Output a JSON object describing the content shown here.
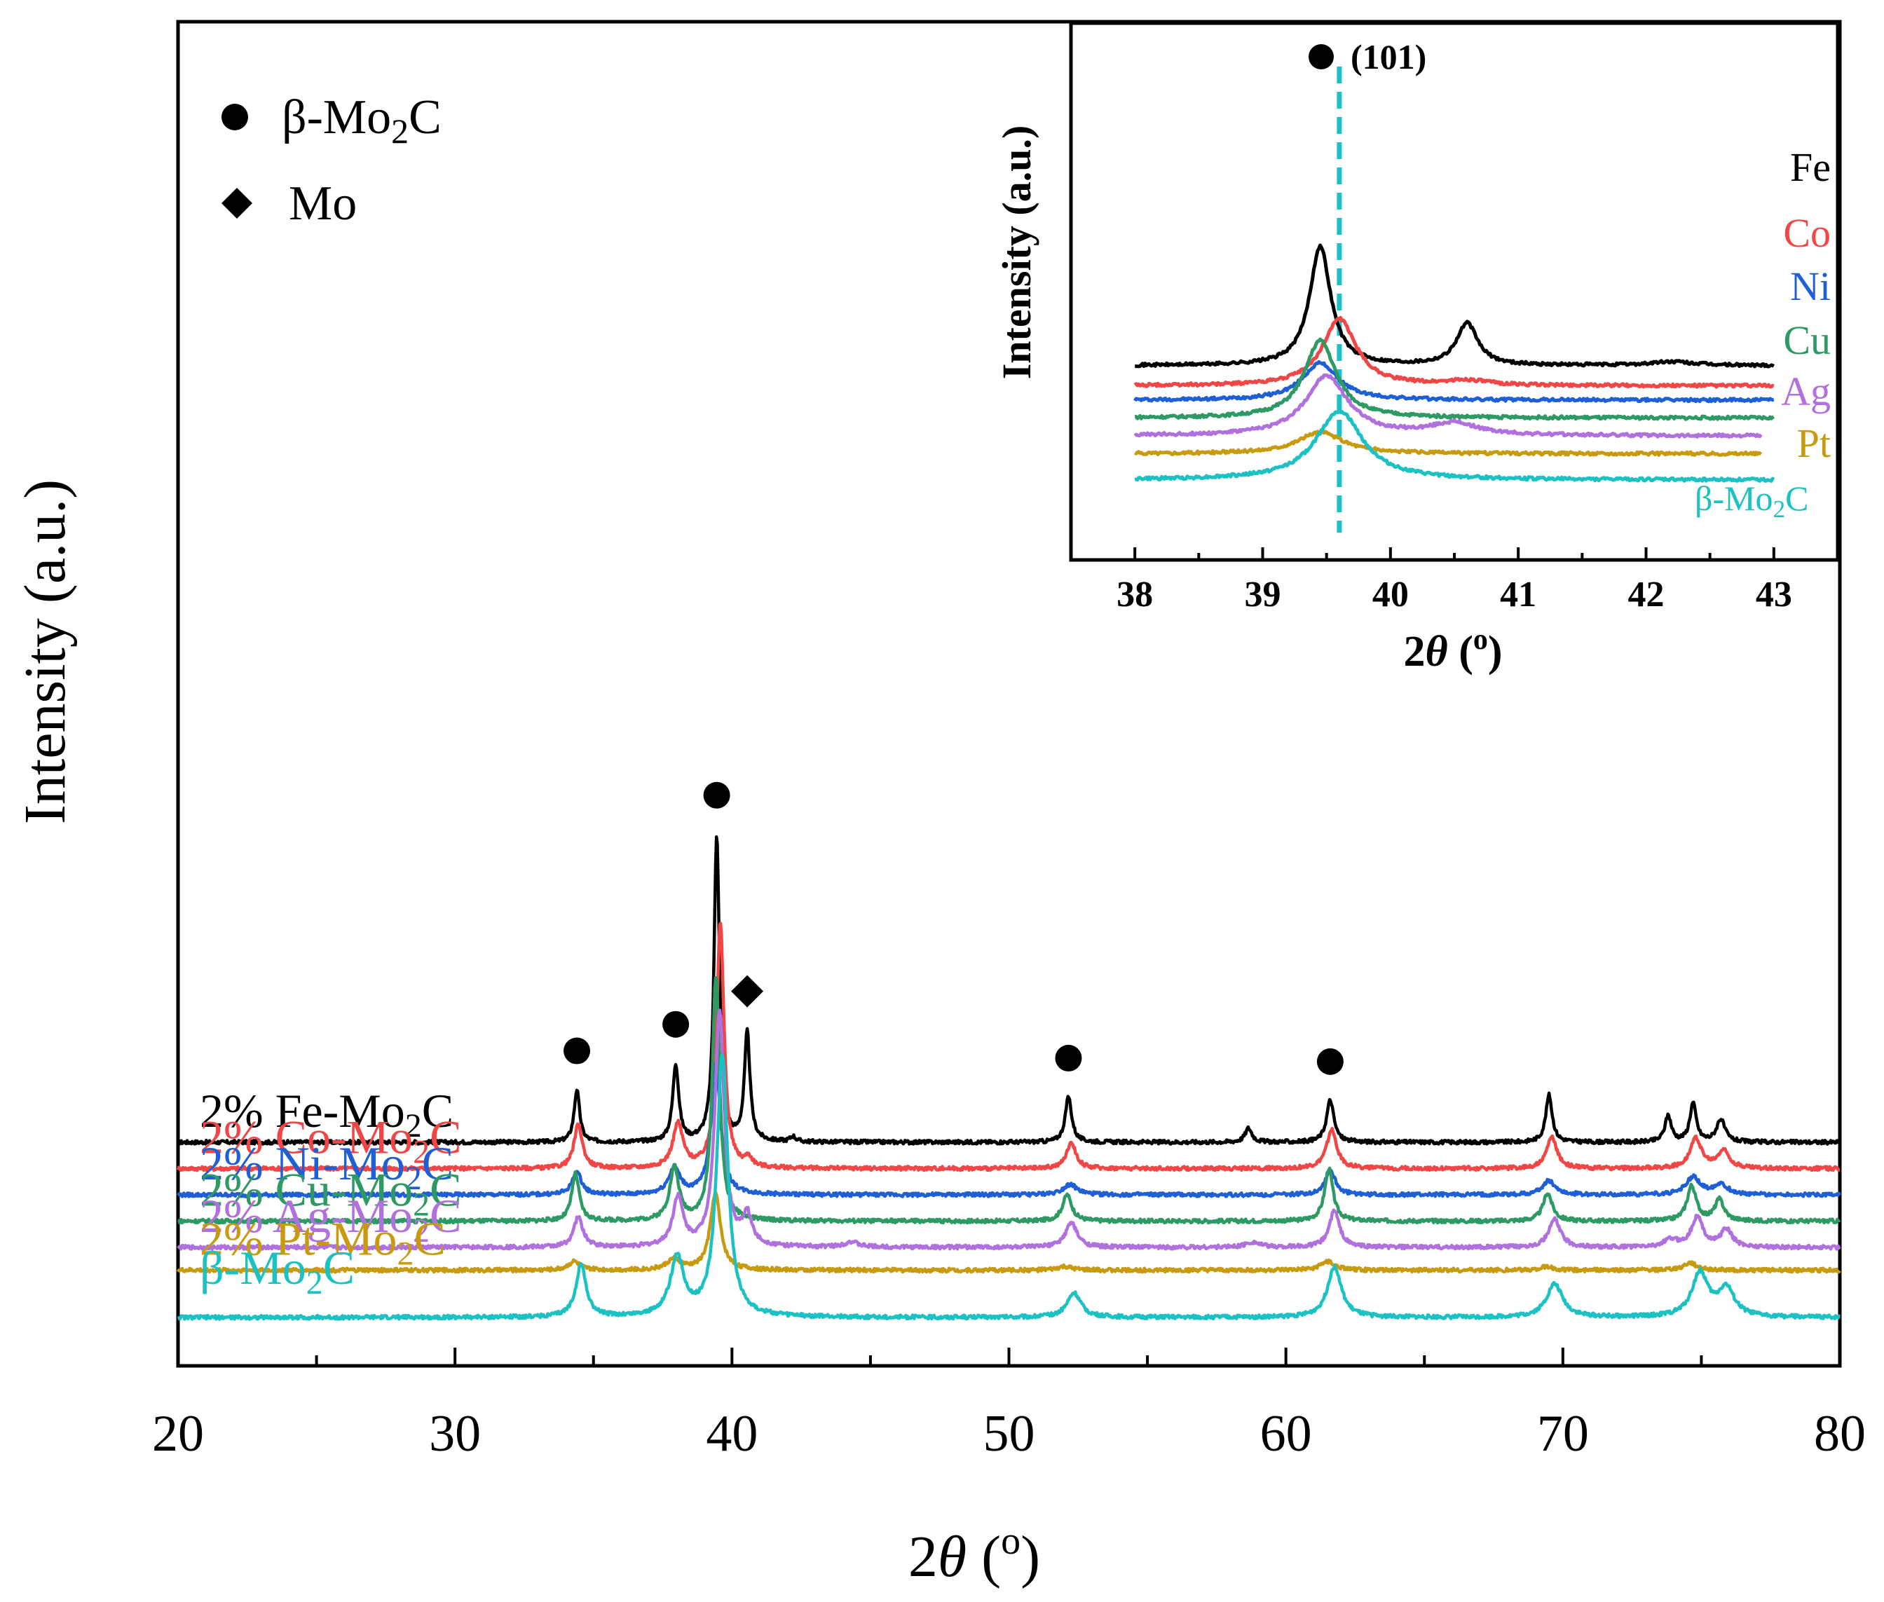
{
  "colors": {
    "Fe": "#000000",
    "Co": "#f04646",
    "Ni": "#1f5fd6",
    "Cu": "#2e9a63",
    "Ag": "#b070dd",
    "Pt": "#c89a10",
    "Mo2C": "#1cc1c4"
  },
  "legend": {
    "beta_prefix": "β-Mo",
    "beta_sub": "2",
    "beta_suffix": "C",
    "mo_label": "Mo"
  },
  "chart_data": [
    {
      "type": "line",
      "title": "",
      "xlabel_prefix": "2",
      "xlabel_theta": "θ",
      "xlabel_suffix": " (",
      "xlabel_unit": "o",
      "xlabel_close": ")",
      "ylabel": "Intensity (a.u.)",
      "xlim": [
        20,
        80
      ],
      "xticks": [
        20,
        30,
        40,
        50,
        60,
        70,
        80
      ],
      "grid": false,
      "legend_position": "top-left",
      "series": [
        {
          "key": "Fe",
          "label_prefix": "2% Fe-Mo",
          "label_sub": "2",
          "label_suffix": "C",
          "baseline": 1.0,
          "peaks": [
            [
              34.4,
              0.3,
              0.12
            ],
            [
              37.97,
              0.44,
              0.13
            ],
            [
              39.45,
              1.75,
              0.12
            ],
            [
              40.55,
              0.62,
              0.12
            ],
            [
              42.2,
              0.03,
              0.12
            ],
            [
              52.15,
              0.26,
              0.14
            ],
            [
              58.65,
              0.08,
              0.15
            ],
            [
              61.6,
              0.24,
              0.16
            ],
            [
              69.5,
              0.27,
              0.14
            ],
            [
              73.8,
              0.15,
              0.14
            ],
            [
              74.7,
              0.22,
              0.14
            ],
            [
              75.7,
              0.13,
              0.18
            ]
          ]
        },
        {
          "key": "Co",
          "label_prefix": "2% Co-Mo",
          "label_sub": "2",
          "label_suffix": "C",
          "baseline": 0.85,
          "peaks": [
            [
              34.45,
              0.25,
              0.18
            ],
            [
              38.05,
              0.25,
              0.22
            ],
            [
              39.58,
              1.4,
              0.16
            ],
            [
              40.6,
              0.05,
              0.15
            ],
            [
              52.25,
              0.15,
              0.2
            ],
            [
              61.65,
              0.22,
              0.22
            ],
            [
              69.6,
              0.18,
              0.22
            ],
            [
              74.8,
              0.17,
              0.25
            ],
            [
              75.8,
              0.1,
              0.25
            ]
          ]
        },
        {
          "key": "Ni",
          "label_prefix": "2% Ni-Mo",
          "label_sub": "2",
          "label_suffix": "C",
          "baseline": 0.7,
          "peaks": [
            [
              34.4,
              0.13,
              0.2
            ],
            [
              37.92,
              0.15,
              0.25
            ],
            [
              39.42,
              0.75,
              0.2
            ],
            [
              52.2,
              0.06,
              0.3
            ],
            [
              61.6,
              0.14,
              0.22
            ],
            [
              69.5,
              0.08,
              0.28
            ],
            [
              74.7,
              0.1,
              0.3
            ],
            [
              75.7,
              0.06,
              0.3
            ]
          ]
        },
        {
          "key": "Cu",
          "label_prefix": "2% Cu-Mo",
          "label_sub": "2",
          "label_suffix": "C",
          "baseline": 0.55,
          "peaks": [
            [
              34.35,
              0.27,
              0.16
            ],
            [
              37.92,
              0.3,
              0.2
            ],
            [
              39.42,
              1.4,
              0.16
            ],
            [
              52.1,
              0.15,
              0.2
            ],
            [
              61.55,
              0.3,
              0.18
            ],
            [
              69.45,
              0.16,
              0.2
            ],
            [
              74.65,
              0.2,
              0.2
            ],
            [
              75.65,
              0.12,
              0.2
            ]
          ]
        },
        {
          "key": "Ag",
          "label_prefix": "2% Ag-Mo",
          "label_sub": "2",
          "label_suffix": "C",
          "baseline": 0.4,
          "peaks": [
            [
              34.45,
              0.17,
              0.2
            ],
            [
              38.05,
              0.28,
              0.22
            ],
            [
              39.55,
              1.35,
              0.2
            ],
            [
              40.55,
              0.17,
              0.2
            ],
            [
              44.3,
              0.03,
              0.3
            ],
            [
              52.25,
              0.14,
              0.25
            ],
            [
              58.8,
              0.03,
              0.3
            ],
            [
              61.75,
              0.21,
              0.22
            ],
            [
              69.7,
              0.16,
              0.25
            ],
            [
              73.9,
              0.04,
              0.3
            ],
            [
              74.85,
              0.17,
              0.25
            ],
            [
              75.9,
              0.1,
              0.25
            ]
          ]
        },
        {
          "key": "Pt",
          "label_prefix": "2% Pt-Mo",
          "label_sub": "2",
          "label_suffix": "C",
          "baseline": 0.27,
          "peaks": [
            [
              34.3,
              0.05,
              0.25
            ],
            [
              37.9,
              0.06,
              0.3
            ],
            [
              39.4,
              0.44,
              0.22
            ],
            [
              52.0,
              0.02,
              0.3
            ],
            [
              61.5,
              0.05,
              0.3
            ],
            [
              69.4,
              0.02,
              0.3
            ],
            [
              74.6,
              0.04,
              0.3
            ]
          ]
        },
        {
          "key": "Mo2C",
          "label_prefix": "β-Mo",
          "label_sub": "2",
          "label_suffix": "C",
          "baseline": 0.0,
          "peaks": [
            [
              34.55,
              0.3,
              0.22
            ],
            [
              38.02,
              0.33,
              0.3
            ],
            [
              39.65,
              1.5,
              0.24
            ],
            [
              52.35,
              0.14,
              0.3
            ],
            [
              61.75,
              0.29,
              0.3
            ],
            [
              69.7,
              0.19,
              0.35
            ],
            [
              74.95,
              0.25,
              0.35
            ],
            [
              75.9,
              0.16,
              0.35
            ]
          ]
        }
      ],
      "markers": [
        {
          "type": "circle",
          "x": 34.4
        },
        {
          "type": "circle",
          "x": 37.97
        },
        {
          "type": "circle",
          "x": 39.45
        },
        {
          "type": "diamond",
          "x": 40.55
        },
        {
          "type": "circle",
          "x": 52.15
        },
        {
          "type": "circle",
          "x": 61.6
        }
      ]
    },
    {
      "type": "line",
      "title": "",
      "inset": true,
      "xlabel_prefix": "2",
      "xlabel_theta": "θ",
      "xlabel_suffix": " (",
      "xlabel_unit": "o",
      "xlabel_close": ")",
      "ylabel": "Intensity (a.u.)",
      "xlim": [
        37.5,
        43.5
      ],
      "xticks": [
        38,
        39,
        40,
        41,
        42,
        43
      ],
      "reference_line_x": 39.6,
      "peak_marker_label": "(101)",
      "legend_position": "right",
      "series": [
        {
          "key": "Fe",
          "label": "Fe",
          "baseline": 0.52,
          "xend": 43.0,
          "peaks": [
            [
              39.45,
              1.0,
              0.1
            ],
            [
              40.6,
              0.35,
              0.1
            ],
            [
              42.2,
              0.03,
              0.2
            ]
          ]
        },
        {
          "key": "Co",
          "label": "Co",
          "baseline": 0.35,
          "xend": 43.0,
          "peaks": [
            [
              39.6,
              0.56,
              0.16
            ],
            [
              40.6,
              0.04,
              0.2
            ]
          ]
        },
        {
          "key": "Ni",
          "label": "Ni",
          "baseline": 0.23,
          "xend": 43.0,
          "peaks": [
            [
              39.45,
              0.31,
              0.17
            ]
          ]
        },
        {
          "key": "Cu",
          "label": "Cu",
          "baseline": 0.08,
          "xend": 43.0,
          "peaks": [
            [
              39.45,
              0.65,
              0.15
            ]
          ]
        },
        {
          "key": "Ag",
          "label": "Ag",
          "baseline": -0.07,
          "xend": 42.9,
          "peaks": [
            [
              39.5,
              0.5,
              0.2
            ],
            [
              40.5,
              0.1,
              0.22
            ]
          ]
        },
        {
          "key": "Pt",
          "label": "Pt",
          "baseline": -0.22,
          "xend": 42.9,
          "peaks": [
            [
              39.45,
              0.18,
              0.22
            ]
          ]
        },
        {
          "key": "Mo2C",
          "label_prefix": "β-Mo",
          "label_sub": "2",
          "label_suffix": "C",
          "baseline": -0.44,
          "xend": 43.0,
          "peaks": [
            [
              39.6,
              0.58,
              0.22
            ]
          ]
        }
      ]
    }
  ]
}
